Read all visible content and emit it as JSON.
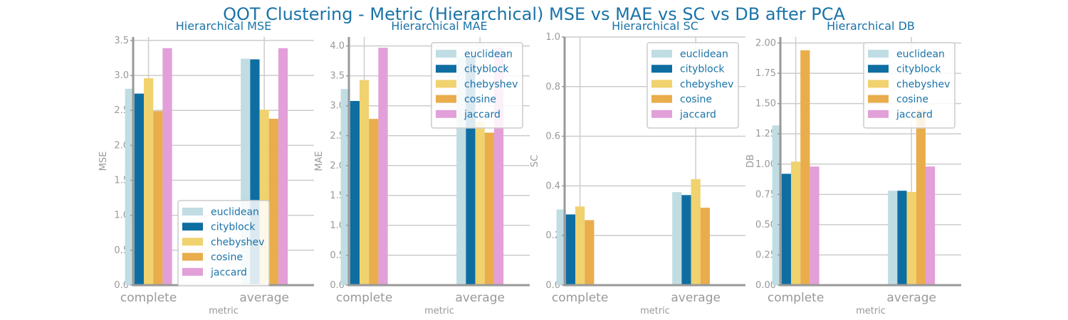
{
  "figure": {
    "title": "QOT Clustering - Metric (Hierarchical) MSE vs MAE vs SC vs DB after PCA"
  },
  "colors": {
    "title": "#1a73a8",
    "axis": "#999999",
    "grid": "#cccccc",
    "tick_text": "#999999",
    "legend_text": "#1a73a8",
    "legend_border": "#cccccc"
  },
  "chart_data": [
    {
      "type": "bar",
      "title": "Hierarchical MSE",
      "xlabel": "metric",
      "ylabel": "MSE",
      "categories": [
        "complete",
        "average"
      ],
      "ylim": [
        0,
        3.55
      ],
      "yticks": [
        "0.0",
        "0.5",
        "1.0",
        "1.5",
        "2.0",
        "2.5",
        "3.0",
        "3.5"
      ],
      "grid": true,
      "legend": "bottom-right",
      "series": [
        {
          "name": "euclidean",
          "color": "#c0dde3",
          "values": [
            2.81,
            3.24
          ]
        },
        {
          "name": "cityblock",
          "color": "#0e6ea2",
          "values": [
            2.74,
            3.23
          ]
        },
        {
          "name": "chebyshev",
          "color": "#f0d26e",
          "values": [
            2.96,
            2.51
          ]
        },
        {
          "name": "cosine",
          "color": "#e9ad4c",
          "values": [
            2.49,
            2.38
          ]
        },
        {
          "name": "jaccard",
          "color": "#e29fd8",
          "values": [
            3.39,
            3.39
          ]
        }
      ]
    },
    {
      "type": "bar",
      "title": "Hierarchical MAE",
      "xlabel": "metric",
      "ylabel": "MAE",
      "categories": [
        "complete",
        "average"
      ],
      "ylim": [
        0,
        4.15
      ],
      "yticks": [
        "0.0",
        "0.5",
        "1.0",
        "1.5",
        "2.0",
        "2.5",
        "3.0",
        "3.5",
        "4.0"
      ],
      "grid": true,
      "legend": "top-right",
      "series": [
        {
          "name": "euclidean",
          "color": "#c0dde3",
          "values": [
            3.28,
            3.83
          ]
        },
        {
          "name": "cityblock",
          "color": "#0e6ea2",
          "values": [
            3.08,
            3.82
          ]
        },
        {
          "name": "chebyshev",
          "color": "#f0d26e",
          "values": [
            3.43,
            2.73
          ]
        },
        {
          "name": "cosine",
          "color": "#e9ad4c",
          "values": [
            2.78,
            2.55
          ]
        },
        {
          "name": "jaccard",
          "color": "#e29fd8",
          "values": [
            3.97,
            3.97
          ]
        }
      ]
    },
    {
      "type": "bar",
      "title": "Hierarchical SC",
      "xlabel": "metric",
      "ylabel": "SC",
      "categories": [
        "complete",
        "average"
      ],
      "ylim": [
        0,
        1.0
      ],
      "yticks": [
        "0.0",
        "0.2",
        "0.4",
        "0.6",
        "0.8",
        "1.0"
      ],
      "grid": true,
      "legend": "top-right",
      "series": [
        {
          "name": "euclidean",
          "color": "#c0dde3",
          "values": [
            0.305,
            0.375
          ]
        },
        {
          "name": "cityblock",
          "color": "#0e6ea2",
          "values": [
            0.285,
            0.363
          ]
        },
        {
          "name": "chebyshev",
          "color": "#f0d26e",
          "values": [
            0.317,
            0.427
          ]
        },
        {
          "name": "cosine",
          "color": "#e9ad4c",
          "values": [
            0.262,
            0.312
          ]
        },
        {
          "name": "jaccard",
          "color": "#e29fd8",
          "values": [
            0,
            0
          ]
        }
      ]
    },
    {
      "type": "bar",
      "title": "Hierarchical DB",
      "xlabel": "metric",
      "ylabel": "DB",
      "categories": [
        "complete",
        "average"
      ],
      "ylim": [
        0,
        2.05
      ],
      "yticks": [
        "0.00",
        "0.25",
        "0.50",
        "0.75",
        "1.00",
        "1.25",
        "1.50",
        "1.75",
        "2.00"
      ],
      "grid": true,
      "legend": "top-right",
      "series": [
        {
          "name": "euclidean",
          "color": "#c0dde3",
          "values": [
            1.32,
            0.78
          ]
        },
        {
          "name": "cityblock",
          "color": "#0e6ea2",
          "values": [
            0.92,
            0.78
          ]
        },
        {
          "name": "chebyshev",
          "color": "#f0d26e",
          "values": [
            1.02,
            0.77
          ]
        },
        {
          "name": "cosine",
          "color": "#e9ad4c",
          "values": [
            1.94,
            1.45
          ]
        },
        {
          "name": "jaccard",
          "color": "#e29fd8",
          "values": [
            0.98,
            0.98
          ]
        }
      ]
    }
  ]
}
